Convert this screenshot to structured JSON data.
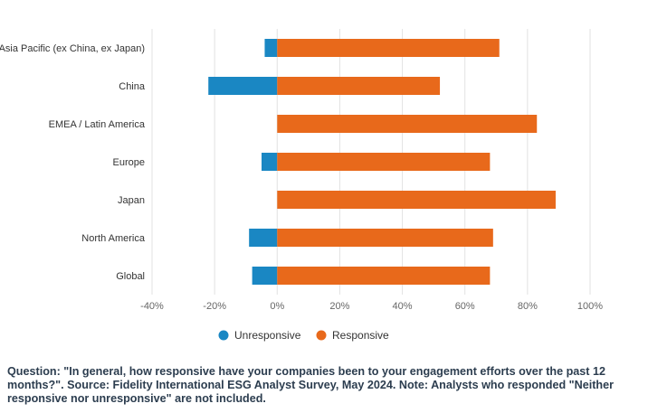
{
  "chart_data": {
    "type": "bar",
    "orientation": "horizontal",
    "stacked": true,
    "categories": [
      "Asia Pacific (ex China, ex Japan)",
      "China",
      "EMEA / Latin America",
      "Europe",
      "Japan",
      "North America",
      "Global"
    ],
    "series": [
      {
        "name": "Unresponsive",
        "color": "#1a87c3",
        "values": [
          -4,
          -22,
          0,
          -5,
          0,
          -9,
          -8
        ]
      },
      {
        "name": "Responsive",
        "color": "#e8691b",
        "values": [
          71,
          52,
          83,
          68,
          89,
          69,
          68
        ]
      }
    ],
    "xlim": [
      -40,
      100
    ],
    "xticks": [
      -40,
      -20,
      0,
      20,
      40,
      60,
      80,
      100
    ],
    "xtick_labels": [
      "-40%",
      "-20%",
      "0%",
      "20%",
      "40%",
      "60%",
      "80%",
      "100%"
    ],
    "grid": "vertical",
    "legend_position": "bottom"
  },
  "footnote": "Question: \"In general, how responsive have your companies been to your engagement efforts over the past 12 months?\". Source: Fidelity International ESG Analyst Survey, May 2024. Note: Analysts who responded \"Neither responsive nor unresponsive\" are not included."
}
